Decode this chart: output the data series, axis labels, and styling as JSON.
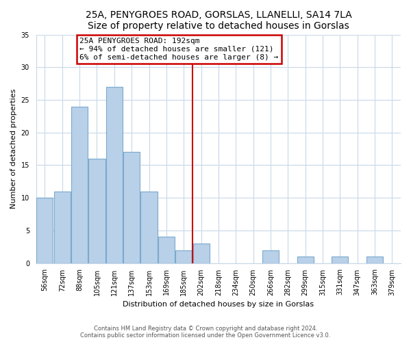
{
  "title": "25A, PENYGROES ROAD, GORSLAS, LLANELLI, SA14 7LA",
  "subtitle": "Size of property relative to detached houses in Gorslas",
  "xlabel": "Distribution of detached houses by size in Gorslas",
  "ylabel": "Number of detached properties",
  "bar_labels": [
    "56sqm",
    "72sqm",
    "88sqm",
    "105sqm",
    "121sqm",
    "137sqm",
    "153sqm",
    "169sqm",
    "185sqm",
    "202sqm",
    "218sqm",
    "234sqm",
    "250sqm",
    "266sqm",
    "282sqm",
    "299sqm",
    "315sqm",
    "331sqm",
    "347sqm",
    "363sqm",
    "379sqm"
  ],
  "bar_values": [
    10,
    11,
    24,
    16,
    27,
    17,
    11,
    4,
    2,
    3,
    0,
    0,
    0,
    2,
    0,
    1,
    0,
    1,
    0,
    1,
    0
  ],
  "bar_color": "#b8d0e8",
  "bar_edgecolor": "#7aaace",
  "reference_line_x": 8.5,
  "annotation_title": "25A PENYGROES ROAD: 192sqm",
  "annotation_line1": "← 94% of detached houses are smaller (121)",
  "annotation_line2": "6% of semi-detached houses are larger (8) →",
  "annotation_box_facecolor": "#ffffff",
  "annotation_box_edgecolor": "#cc0000",
  "vline_color": "#cc0000",
  "ylim": [
    0,
    35
  ],
  "yticks": [
    0,
    5,
    10,
    15,
    20,
    25,
    30,
    35
  ],
  "footer_line1": "Contains HM Land Registry data © Crown copyright and database right 2024.",
  "footer_line2": "Contains public sector information licensed under the Open Government Licence v3.0.",
  "plot_bg_color": "#ffffff",
  "fig_bg_color": "#ffffff",
  "grid_color": "#c8d8e8",
  "title_fontsize": 10,
  "subtitle_fontsize": 9,
  "tick_fontsize": 7,
  "ylabel_fontsize": 8,
  "xlabel_fontsize": 8,
  "annotation_fontsize": 8
}
